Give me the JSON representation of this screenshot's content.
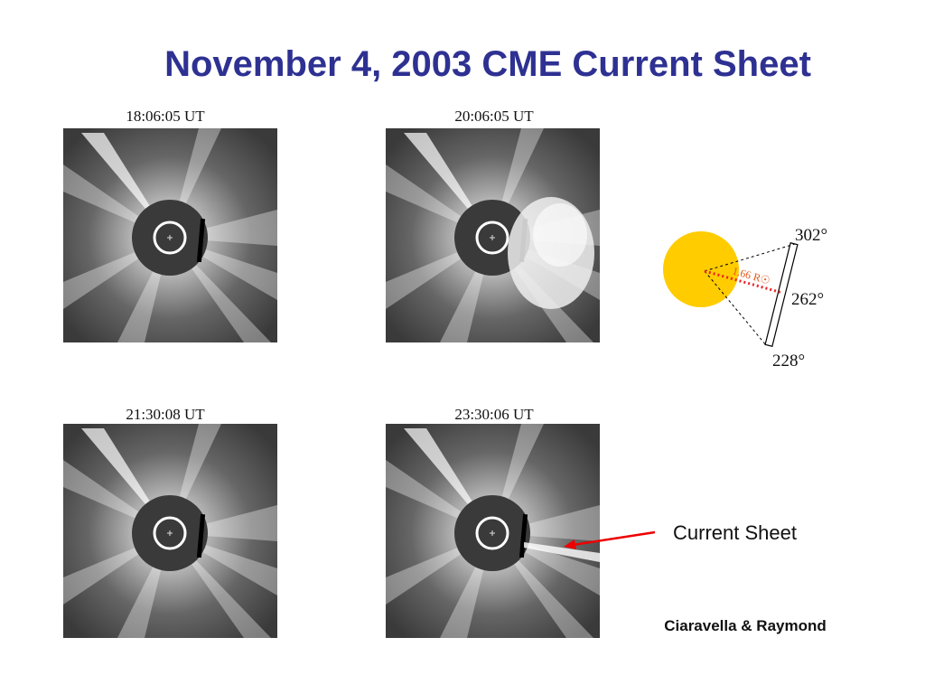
{
  "title": "November 4, 2003 CME Current Sheet",
  "panels": [
    {
      "time": "18:06:05 UT"
    },
    {
      "time": "20:06:05 UT"
    },
    {
      "time": "21:30:08 UT"
    },
    {
      "time": "23:30:06 UT"
    }
  ],
  "diagram": {
    "angles": [
      "302°",
      "262°",
      "228°"
    ],
    "distance": "1.66 R☉"
  },
  "annotation": "Current Sheet",
  "credit": "Ciaravella & Raymond"
}
